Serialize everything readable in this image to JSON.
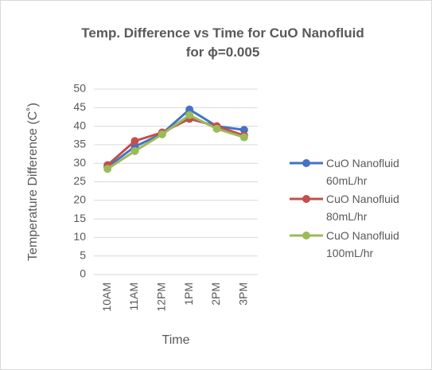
{
  "chart_data": {
    "type": "line",
    "title": "Temp. Difference vs Time for CuO Nanofluid for ϕ=0.005",
    "x_label": "Time",
    "y_label": "Temperature Difference (C˚)",
    "categories": [
      "10AM",
      "11AM",
      "12PM",
      "1PM",
      "2PM",
      "3PM"
    ],
    "series": [
      {
        "name": "CuO Nanofluid 60mL/hr",
        "color": "#4472c4",
        "values": [
          29,
          34.5,
          38,
          44.5,
          40,
          39
        ]
      },
      {
        "name": "CuO Nanofluid 80mL/hr",
        "color": "#c0504d",
        "values": [
          29.5,
          36,
          38.3,
          42,
          40,
          37.5
        ]
      },
      {
        "name": "CuO Nanofluid 100mL/hr",
        "color": "#9bbb59",
        "values": [
          28.5,
          33.3,
          37.8,
          43,
          39.3,
          37
        ]
      }
    ],
    "ylim": [
      0,
      50
    ],
    "yticks": [
      0,
      5,
      10,
      15,
      20,
      25,
      30,
      35,
      40,
      45,
      50
    ],
    "grid": true,
    "legend": "right"
  }
}
